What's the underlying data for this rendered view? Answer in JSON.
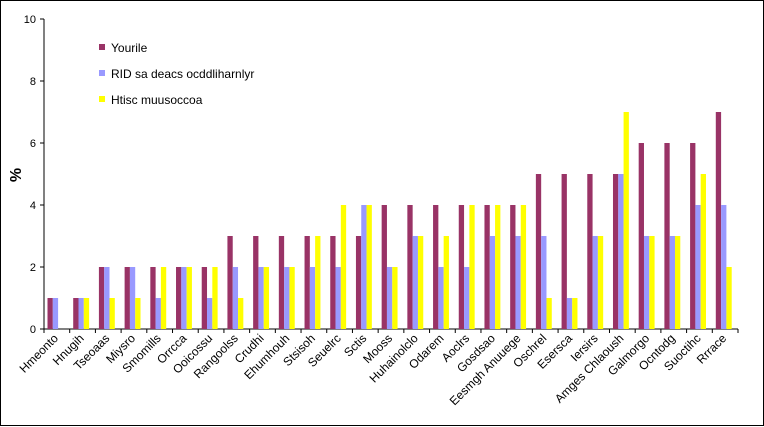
{
  "chart_data": {
    "type": "bar",
    "title": "",
    "xlabel": "",
    "ylabel": "%",
    "ylim": [
      0,
      10
    ],
    "yticks": [
      0,
      2,
      4,
      6,
      8,
      10
    ],
    "grid": false,
    "legend_position": "top-left",
    "categories": [
      "Hmeonto",
      "Hnugih",
      "Tseoaas",
      "Miysro",
      "Smomills",
      "Orrcca",
      "Ooicossu",
      "Rangoolss",
      "Crudhi",
      "Ehumhouh",
      "Stsisoh",
      "Seuelrc",
      "Sctis",
      "Mooss",
      "Huhainolclo",
      "Odarem",
      "Aoclrs",
      "Gosdsao",
      "Eesmgh Anuuege",
      "Oschrel",
      "Esersca",
      "Iersirs",
      "Amges Chlaoush",
      "Galmorgo",
      "Ocntodg",
      "Suoctihc",
      "Rrrace"
    ],
    "series": [
      {
        "name": "Yourile",
        "color": "#993366",
        "values": [
          1,
          1,
          2,
          2,
          2,
          2,
          2,
          3,
          3,
          3,
          3,
          3,
          3,
          4,
          4,
          4,
          4,
          4,
          4,
          5,
          5,
          5,
          5,
          6,
          6,
          6,
          7
        ]
      },
      {
        "name": "RID sa deacs ocddliharnlyr",
        "color": "#9999ff",
        "values": [
          1,
          1,
          2,
          2,
          1,
          2,
          1,
          2,
          2,
          2,
          2,
          2,
          4,
          2,
          3,
          2,
          2,
          3,
          3,
          3,
          1,
          3,
          5,
          3,
          3,
          4,
          4
        ]
      },
      {
        "name": "Htisc muusoccoa",
        "color": "#ffff00",
        "values": [
          0,
          1,
          1,
          1,
          2,
          2,
          2,
          1,
          2,
          2,
          3,
          4,
          4,
          2,
          3,
          3,
          4,
          4,
          4,
          1,
          1,
          3,
          7,
          3,
          3,
          5,
          2
        ]
      }
    ]
  }
}
